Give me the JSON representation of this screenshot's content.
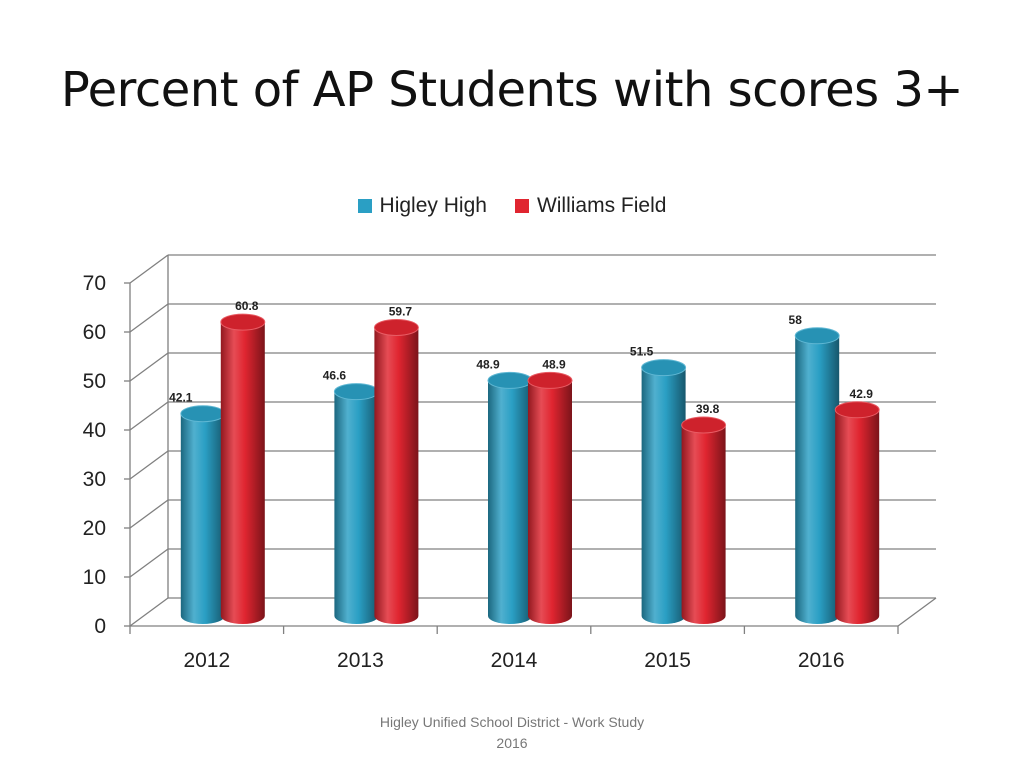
{
  "slide": {
    "title": "Percent of AP Students with scores 3+",
    "footer_line1": "Higley Unified School District  - Work Study",
    "footer_line2": "2016"
  },
  "chart_data": {
    "type": "bar",
    "style": "3d-cylinder",
    "categories": [
      "2012",
      "2013",
      "2014",
      "2015",
      "2016"
    ],
    "series": [
      {
        "name": "Higley High",
        "color": "#2a9fc4",
        "values": [
          42.1,
          46.6,
          48.9,
          51.5,
          58
        ]
      },
      {
        "name": "Williams Field",
        "color": "#e02530",
        "values": [
          60.8,
          59.7,
          48.9,
          39.8,
          42.9
        ]
      }
    ],
    "ylim": [
      0,
      70
    ],
    "yticks": [
      "0",
      "10",
      "20",
      "30",
      "40",
      "50",
      "60",
      "70"
    ],
    "grid": true,
    "legend_position": "top",
    "data_labels": true
  }
}
